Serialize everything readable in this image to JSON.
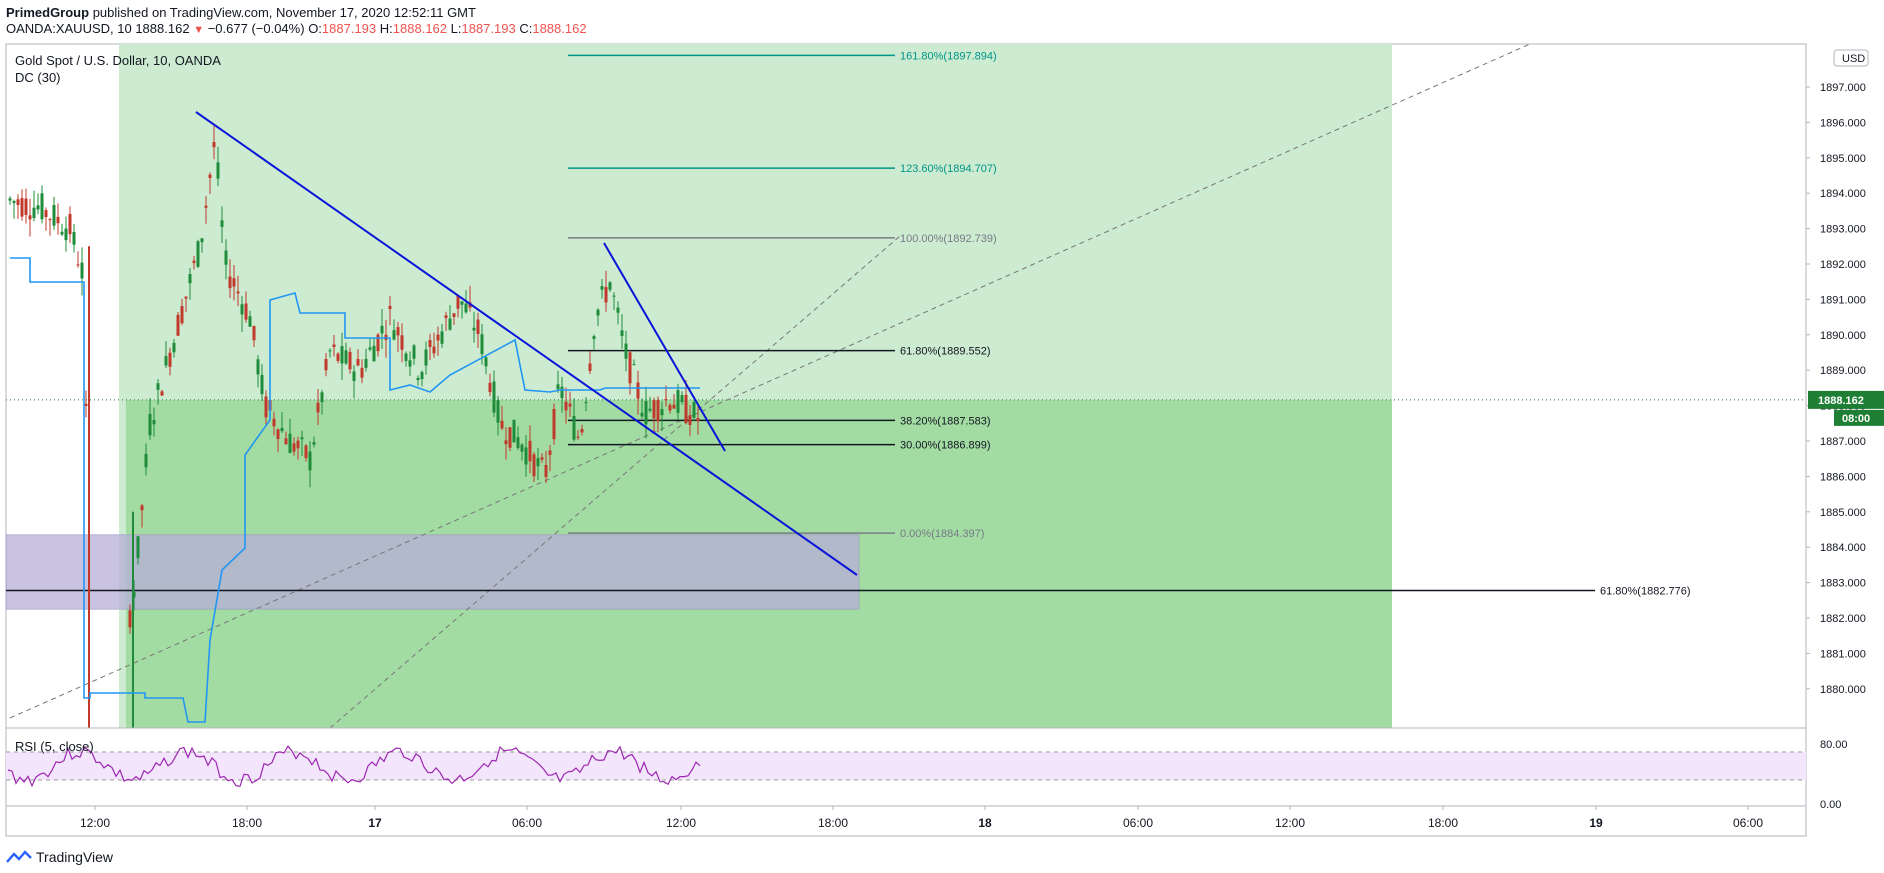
{
  "header": {
    "author": "PrimedGroup",
    "published_text": "published on TradingView.com, November 17, 2020 12:52:11 GMT",
    "symbol": "OANDA:XAUUSD, 10",
    "price": "1888.162",
    "change": "−0.677 (−0.04%)",
    "o_label": "O:",
    "o_value": "1887.193",
    "h_label": "H:",
    "h_value": "1888.162",
    "l_label": "L:",
    "l_value": "1887.193",
    "c_label": "C:",
    "c_value": "1888.162"
  },
  "legend": {
    "title": "Gold Spot / U.S. Dollar, 10, OANDA",
    "indicator": "DC (30)",
    "rsi": "RSI (5, close)"
  },
  "price_axis": {
    "currency": "USD",
    "current_price": "1888.162",
    "countdown": "08:00"
  },
  "footer": {
    "brand": "TradingView"
  },
  "colors": {
    "up": "#26a69a",
    "candle_up": "#1e8c3a",
    "candle_down": "#c0392b",
    "dc_line": "#2196f3",
    "trend": "#0a14d9",
    "fib_ext": "#009688",
    "fib_grey": "#787b86",
    "zone_green_light": "#cdebd0",
    "zone_green": "#a3dca3",
    "zone_purple": "#b7aed7",
    "rsi_band": "#f3e5fc",
    "rsi_line": "#9c27b0",
    "current_price_label": "#1e7e34"
  },
  "chart_data": {
    "type": "candlestick",
    "y_ticks": [
      "1897.000",
      "1896.000",
      "1895.000",
      "1894.000",
      "1893.000",
      "1892.000",
      "1891.000",
      "1890.000",
      "1889.000",
      "1888.000",
      "1887.000",
      "1886.000",
      "1885.000",
      "1884.000",
      "1883.000",
      "1882.000",
      "1881.000",
      "1880.000"
    ],
    "x_ticks": [
      "12:00",
      "18:00",
      "17",
      "06:00",
      "12:00",
      "18:00",
      "18",
      "06:00",
      "12:00",
      "18:00",
      "19",
      "06:00"
    ],
    "fib_levels": [
      {
        "label": "161.80%(1897.894)",
        "value": 1897.894,
        "group": "ext"
      },
      {
        "label": "123.60%(1894.707)",
        "value": 1894.707,
        "group": "ext"
      },
      {
        "label": "100.00%(1892.739)",
        "value": 1892.739,
        "group": "grey"
      },
      {
        "label": "61.80%(1889.552)",
        "value": 1889.552,
        "group": "black"
      },
      {
        "label": "38.20%(1887.583)",
        "value": 1887.583,
        "group": "black"
      },
      {
        "label": "30.00%(1886.899)",
        "value": 1886.899,
        "group": "black"
      },
      {
        "label": "0.00%(1884.397)",
        "value": 1884.397,
        "group": "grey"
      }
    ],
    "long_fib": {
      "label": "61.80%(1882.776)",
      "value": 1882.776
    },
    "rsi_ticks": [
      "80.00",
      "0.00"
    ],
    "current_price": 1888.162
  }
}
